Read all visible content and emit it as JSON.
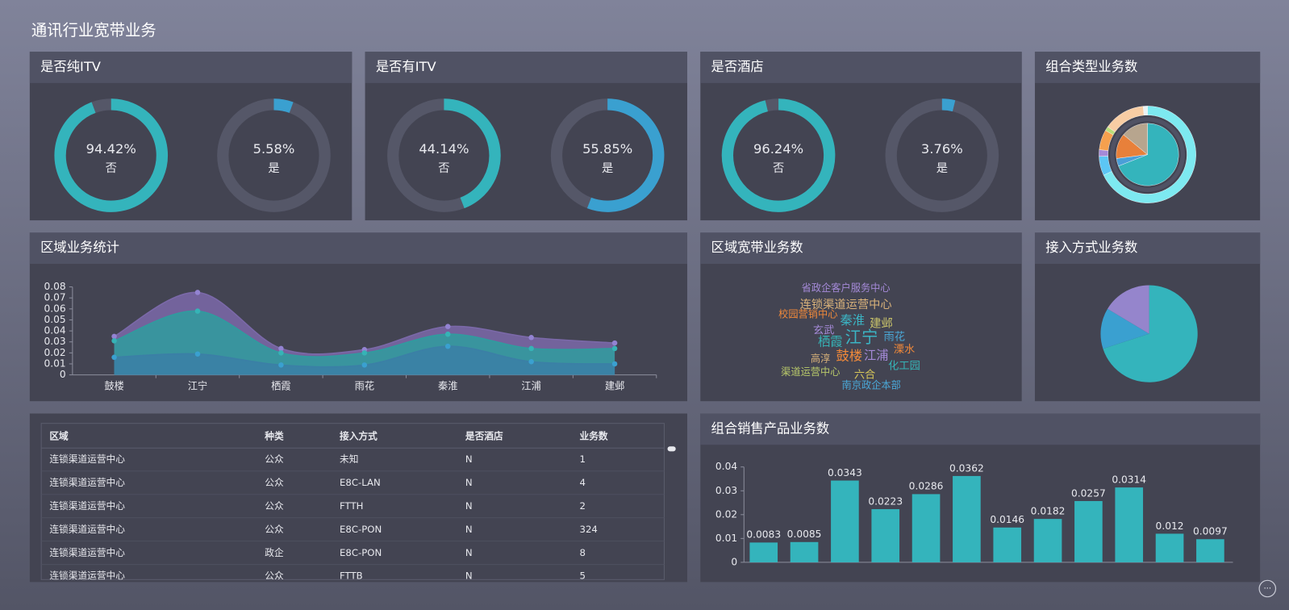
{
  "title": "通讯行业宽带业务",
  "chart_data": [
    {
      "type": "donut",
      "title": "是否纯ITV",
      "categories": [
        "否",
        "是"
      ],
      "values": [
        94.42,
        5.58
      ],
      "value_labels": [
        "94.42%",
        "5.58%"
      ],
      "colors": [
        "#34b4bc",
        "#3aa0d0"
      ]
    },
    {
      "type": "donut",
      "title": "是否有ITV",
      "categories": [
        "否",
        "是"
      ],
      "values": [
        44.14,
        55.85
      ],
      "value_labels": [
        "44.14%",
        "55.85%"
      ],
      "colors": [
        "#34b4bc",
        "#3aa0d0"
      ]
    },
    {
      "type": "donut",
      "title": "是否酒店",
      "categories": [
        "否",
        "是"
      ],
      "values": [
        96.24,
        3.76
      ],
      "value_labels": [
        "96.24%",
        "3.76%"
      ],
      "colors": [
        "#34b4bc",
        "#3aa0d0"
      ]
    },
    {
      "type": "nested-pie",
      "title": "组合类型业务数",
      "series": [
        {
          "values": [
            69,
            4,
            13,
            14
          ],
          "colors": [
            "#34b4bc",
            "#4a9fd8",
            "#e8803a",
            "#b7a58e"
          ]
        },
        {
          "values": [
            68,
            6.4,
            2.2,
            6.7,
            1.4,
            13.9,
            1.4
          ],
          "colors": [
            "#7de9f0",
            "#5cc6f4",
            "#a58ad8",
            "#f5a04e",
            "#b9dd7a",
            "#f8cda4",
            "#e9f2f4"
          ]
        }
      ]
    },
    {
      "type": "area",
      "title": "区域业务统计",
      "categories": [
        "鼓楼",
        "江宁",
        "栖霞",
        "雨花",
        "秦淮",
        "江浦",
        "建邺"
      ],
      "series": [
        {
          "color": "#7b69a9",
          "values": [
            0.035,
            0.075,
            0.024,
            0.023,
            0.044,
            0.034,
            0.029
          ]
        },
        {
          "color": "#2f9c9f",
          "values": [
            0.031,
            0.058,
            0.02,
            0.02,
            0.037,
            0.024,
            0.024
          ]
        },
        {
          "color": "#3b7fa6",
          "values": [
            0.016,
            0.019,
            0.009,
            0.009,
            0.026,
            0.012,
            0.01
          ]
        }
      ],
      "ylim": [
        0,
        0.08
      ],
      "yticks": [
        0,
        0.01,
        0.02,
        0.03,
        0.04,
        0.05,
        0.06,
        0.07,
        0.08
      ]
    },
    {
      "type": "wordcloud",
      "title": "区域宽带业务数",
      "words": [
        "省政企客户服务中心",
        "连锁渠道运营中心",
        "校园营销中心",
        "秦淮",
        "建邺",
        "玄武",
        "栖霞",
        "江宁",
        "雨花",
        "溧水",
        "高淳",
        "鼓楼",
        "江浦",
        "化工园",
        "渠道运营中心",
        "六合",
        "南京政企本部"
      ]
    },
    {
      "type": "pie",
      "title": "接入方式业务数",
      "values": [
        70,
        13.6,
        16.4
      ],
      "colors": [
        "#34b4bc",
        "#3aa0d0",
        "#9585cc"
      ]
    },
    {
      "type": "bar",
      "title": "组合销售产品业务数",
      "color": "#34b4bc",
      "values": [
        0.0083,
        0.0085,
        0.0343,
        0.0223,
        0.0286,
        0.0362,
        0.0146,
        0.0182,
        0.0257,
        0.0314,
        0.012,
        0.0097
      ],
      "ylim": [
        0,
        0.04
      ],
      "yticks": [
        0,
        0.01,
        0.02,
        0.03,
        0.04
      ]
    }
  ],
  "table": {
    "columns": [
      "区域",
      "种类",
      "接入方式",
      "是否酒店",
      "业务数"
    ],
    "rows": [
      [
        "连锁渠道运营中心",
        "公众",
        "未知",
        "N",
        1
      ],
      [
        "连锁渠道运营中心",
        "公众",
        "E8C-LAN",
        "N",
        4
      ],
      [
        "连锁渠道运营中心",
        "公众",
        "FTTH",
        "N",
        2
      ],
      [
        "连锁渠道运营中心",
        "公众",
        "E8C-PON",
        "N",
        324
      ],
      [
        "连锁渠道运营中心",
        "政企",
        "E8C-PON",
        "N",
        8
      ],
      [
        "连锁渠道运营中心",
        "公众",
        "FTTB",
        "N",
        5
      ]
    ]
  }
}
